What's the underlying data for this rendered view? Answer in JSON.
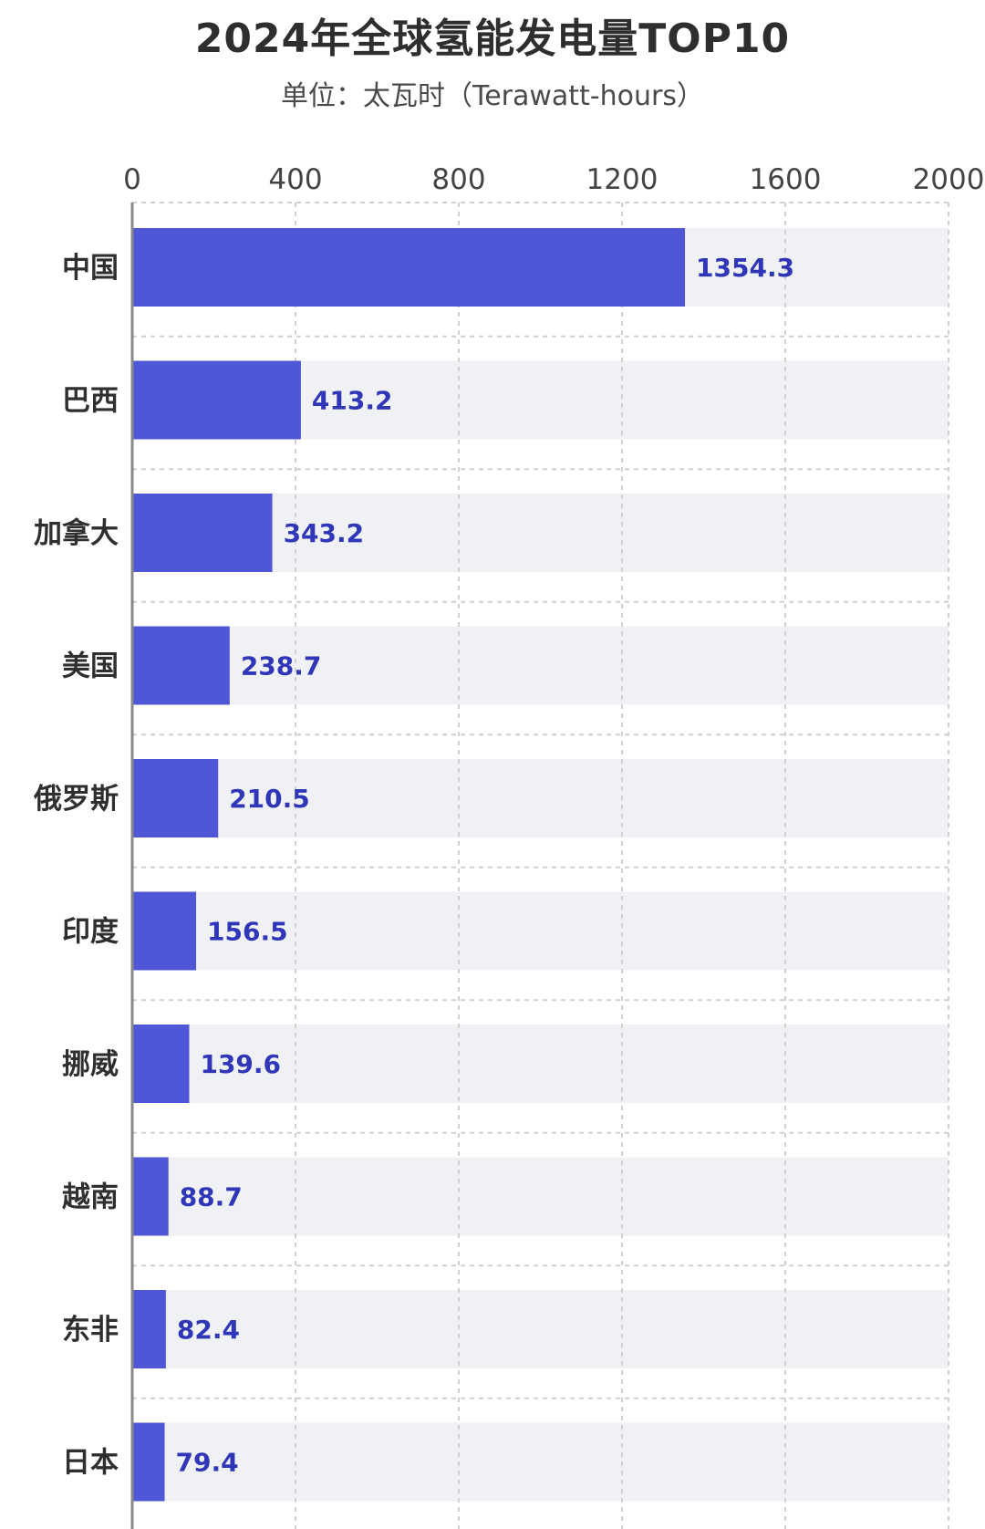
{
  "title": "2024年全球氢能发电量TOP10",
  "subtitle": "单位：太瓦时（Terawatt-hours）",
  "chart_data": {
    "type": "bar",
    "orientation": "horizontal",
    "title": "2024年全球氢能发电量TOP10",
    "subtitle": "单位：太瓦时（Terawatt-hours）",
    "categories": [
      "中国",
      "巴西",
      "加拿大",
      "美国",
      "俄罗斯",
      "印度",
      "挪威",
      "越南",
      "东非",
      "日本"
    ],
    "values": [
      1354.3,
      413.2,
      343.2,
      238.7,
      210.5,
      156.5,
      139.6,
      88.7,
      82.4,
      79.4
    ],
    "value_labels": [
      "1354.3",
      "413.2",
      "343.2",
      "238.7",
      "210.5",
      "156.5",
      "139.6",
      "88.7",
      "82.4",
      "79.4"
    ],
    "xlim": [
      0,
      2000
    ],
    "xticks": [
      "0",
      "400",
      "800",
      "1200",
      "1600",
      "2000"
    ],
    "x_axis_position": "top",
    "grid": true,
    "colors": {
      "bar": "#4f57d6",
      "bar_track": "#f0f1f5",
      "value_text": "#2f37b8",
      "grid": "#d0d0d0",
      "axis": "#888888"
    }
  }
}
